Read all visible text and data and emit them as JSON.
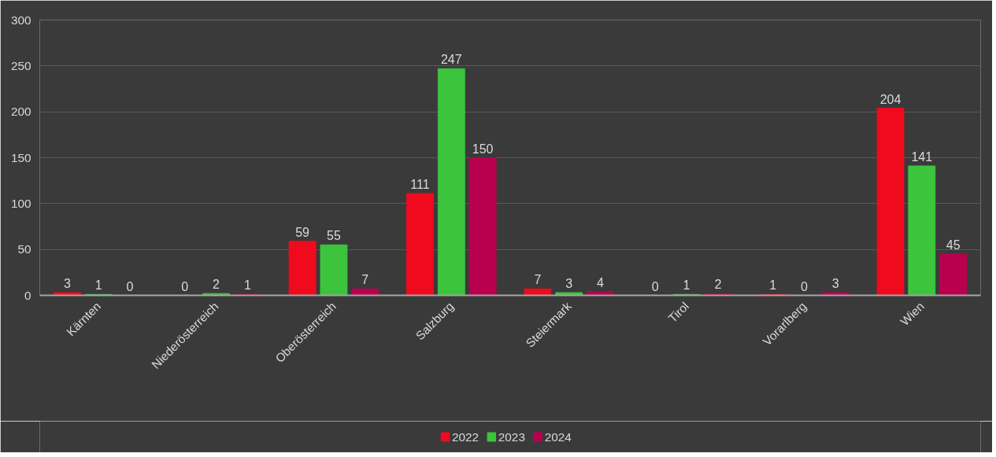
{
  "chart_data": {
    "type": "bar",
    "categories": [
      "Kärnten",
      "Niederösterreich",
      "Oberösterreich",
      "Salzburg",
      "Steiermark",
      "Tirol",
      "Vorarlberg",
      "Wien"
    ],
    "series": [
      {
        "name": "2022",
        "color": "#f00a1e",
        "values": [
          3,
          0,
          59,
          111,
          7,
          0,
          1,
          204
        ]
      },
      {
        "name": "2023",
        "color": "#3cc43c",
        "values": [
          1,
          2,
          55,
          247,
          3,
          1,
          0,
          141
        ]
      },
      {
        "name": "2024",
        "color": "#b8004e",
        "values": [
          0,
          1,
          7,
          150,
          4,
          2,
          3,
          45
        ]
      }
    ],
    "ylim": [
      0,
      300
    ],
    "yticks": [
      0,
      50,
      100,
      150,
      200,
      250,
      300
    ],
    "grid": "y",
    "legend": "bottom",
    "data_labels": true
  }
}
